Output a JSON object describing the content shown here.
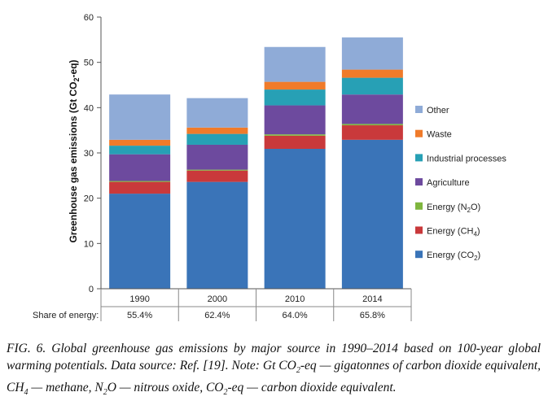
{
  "chart_data": {
    "type": "bar",
    "stacked": true,
    "categories": [
      "1990",
      "2000",
      "2010",
      "2014"
    ],
    "ylabel_main": "Greenhouse gas emissions (Gt CO",
    "ylabel_sub": "2",
    "ylabel_end": "-eq)",
    "ylim": [
      0,
      60
    ],
    "yticks": [
      "0",
      "10",
      "20",
      "30",
      "40",
      "50",
      "60"
    ],
    "series": [
      {
        "name": "Energy (CO",
        "sub": "2",
        "name_end": ")",
        "color": "#3a74b8",
        "values": [
          21.0,
          23.6,
          30.9,
          32.9
        ]
      },
      {
        "name": "Energy (CH",
        "sub": "4",
        "name_end": ")",
        "color": "#c9393b",
        "values": [
          2.6,
          2.5,
          2.9,
          3.2
        ]
      },
      {
        "name": "Energy (N",
        "sub": "2",
        "name_end": "O)",
        "color": "#7fb63e",
        "values": [
          0.2,
          0.2,
          0.3,
          0.3
        ]
      },
      {
        "name": "Agriculture",
        "sub": "",
        "name_end": "",
        "color": "#6d4a9e",
        "values": [
          5.9,
          5.5,
          6.4,
          6.5
        ]
      },
      {
        "name": "Industrial processes",
        "sub": "",
        "name_end": "",
        "color": "#27a0b5",
        "values": [
          1.9,
          2.4,
          3.5,
          3.7
        ]
      },
      {
        "name": "Waste",
        "sub": "",
        "name_end": "",
        "color": "#f07b2a",
        "values": [
          1.3,
          1.4,
          1.7,
          1.8
        ]
      },
      {
        "name": "Other",
        "sub": "",
        "name_end": "",
        "color": "#8fabd7",
        "values": [
          10.0,
          6.5,
          7.7,
          7.1
        ]
      }
    ],
    "share_label": "Share of energy:",
    "share_values": [
      "55.4%",
      "62.4%",
      "64.0%",
      "65.8%"
    ],
    "grid": false,
    "legend_position": "right"
  },
  "caption": {
    "text1": "FIG. 6.  Global greenhouse gas emissions by major source in 1990–2014 based on 100-year global warming potentials. Data source: Ref. [19]. Note: Gt CO",
    "sub1": "2",
    "text2": "-eq — gigatonnes of carbon dioxide equivalent, CH",
    "sub2": "4",
    "text3": " — methane, N",
    "sub3": "2",
    "text4": "O — nitrous oxide, CO",
    "sub4": "2",
    "text5": "-eq — carbon dioxide equivalent."
  }
}
